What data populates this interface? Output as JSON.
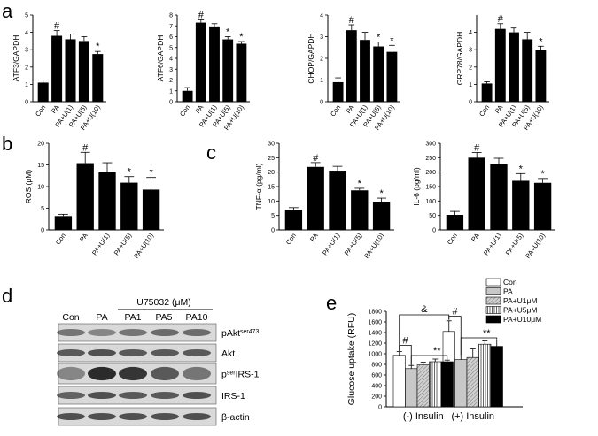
{
  "panel_labels": {
    "a": "a",
    "b": "b",
    "c": "c",
    "d": "d",
    "e": "e"
  },
  "chart_data": [
    {
      "id": "atf3",
      "type": "bar",
      "ylabel": "ATF3/GAPDH",
      "categories": [
        "Con",
        "PA",
        "PA+U(1)",
        "PA+U(5)",
        "PA+U(10)"
      ],
      "values": [
        1.1,
        3.8,
        3.6,
        3.5,
        2.75
      ],
      "errors": [
        0.15,
        0.3,
        0.3,
        0.25,
        0.15
      ],
      "ylim": [
        0,
        5
      ],
      "yticks": [
        0,
        1,
        2,
        3,
        4,
        5
      ],
      "significance": [
        "",
        "#",
        "",
        "",
        "*"
      ]
    },
    {
      "id": "atf6",
      "type": "bar",
      "ylabel": "ATF6/GAPDH",
      "categories": [
        "Con",
        "PA",
        "PA+U(1)",
        "PA+U(5)",
        "PA+U(10)"
      ],
      "values": [
        1.0,
        7.3,
        6.95,
        5.75,
        5.35
      ],
      "errors": [
        0.3,
        0.25,
        0.25,
        0.25,
        0.2
      ],
      "ylim": [
        0,
        8
      ],
      "yticks": [
        0,
        1,
        2,
        3,
        4,
        5,
        6,
        7,
        8
      ],
      "significance": [
        "",
        "#",
        "",
        "*",
        "*"
      ]
    },
    {
      "id": "chop",
      "type": "bar",
      "ylabel": "CHOP/GAPDH",
      "categories": [
        "Con",
        "PA",
        "PA+U(1)",
        "PA+U(5)",
        "PA+U(10)"
      ],
      "values": [
        0.9,
        3.3,
        2.85,
        2.55,
        2.3
      ],
      "errors": [
        0.2,
        0.25,
        0.35,
        0.2,
        0.3
      ],
      "ylim": [
        0,
        4
      ],
      "yticks": [
        0,
        1,
        2,
        3,
        4
      ],
      "significance": [
        "",
        "#",
        "",
        "*",
        "*"
      ]
    },
    {
      "id": "grp78",
      "type": "bar",
      "ylabel": "GRP78/GAPDH",
      "categories": [
        "Con",
        "PA",
        "PA+U(1)",
        "PA+U(5)",
        "PA+U(10)"
      ],
      "values": [
        1.05,
        4.2,
        4.0,
        3.6,
        3.0
      ],
      "errors": [
        0.1,
        0.3,
        0.25,
        0.4,
        0.2
      ],
      "ylim": [
        0,
        5
      ],
      "yticks": [
        0,
        1,
        2,
        3,
        4
      ],
      "significance": [
        "",
        "#",
        "",
        "",
        "*"
      ]
    },
    {
      "id": "ros",
      "type": "bar",
      "ylabel": "ROS (μM)",
      "categories": [
        "Con",
        "PA",
        "PA+U(1)",
        "PA+U(5)",
        "PA+U(10)"
      ],
      "values": [
        3.2,
        15.4,
        13.3,
        10.9,
        9.3
      ],
      "errors": [
        0.4,
        2.5,
        2.2,
        1.4,
        2.8
      ],
      "ylim": [
        0,
        20
      ],
      "yticks": [
        0,
        5,
        10,
        15,
        20
      ],
      "significance": [
        "",
        "#",
        "",
        "*",
        "*"
      ]
    },
    {
      "id": "tnfa",
      "type": "bar",
      "ylabel": "TNF-α (pg/ml)",
      "categories": [
        "Con",
        "PA",
        "PA+U(1)",
        "PA+U(5)",
        "PA+U(10)"
      ],
      "values": [
        7.0,
        21.8,
        20.5,
        13.7,
        9.8
      ],
      "errors": [
        0.7,
        1.5,
        1.5,
        0.7,
        1.2
      ],
      "ylim": [
        0,
        30
      ],
      "yticks": [
        0,
        5,
        10,
        15,
        20,
        25,
        30
      ],
      "significance": [
        "",
        "#",
        "",
        "*",
        "*"
      ]
    },
    {
      "id": "il6",
      "type": "bar",
      "ylabel": "IL-6 (pg/ml)",
      "categories": [
        "Con",
        "PA",
        "PA+U(1)",
        "PA+U(5)",
        "PA+U(10)"
      ],
      "values": [
        52,
        250,
        228,
        170,
        163
      ],
      "errors": [
        12,
        18,
        20,
        25,
        15
      ],
      "ylim": [
        0,
        300
      ],
      "yticks": [
        0,
        50,
        100,
        150,
        200,
        250,
        300
      ],
      "significance": [
        "",
        "#",
        "",
        "*",
        "*"
      ]
    },
    {
      "id": "glucose",
      "type": "bar",
      "ylabel": "Glucose uptake (RFU)",
      "groups": [
        "(-)  Insulin",
        "(+) Insulin"
      ],
      "ylim": [
        0,
        1800
      ],
      "yticks": [
        0,
        200,
        400,
        600,
        800,
        1000,
        1200,
        1400,
        1600,
        1800
      ],
      "series": [
        {
          "name": "Con",
          "values": [
            970,
            1420
          ],
          "errors": [
            70,
            200
          ],
          "color": "#ffffff",
          "pattern": "none"
        },
        {
          "name": "PA",
          "values": [
            720,
            890
          ],
          "errors": [
            60,
            70
          ],
          "color": "#c8c8c8",
          "pattern": "none"
        },
        {
          "name": "PA+U1μM",
          "values": [
            790,
            930
          ],
          "errors": [
            50,
            160
          ],
          "color": "#c8c8c8",
          "pattern": "diag"
        },
        {
          "name": "PA+U5μM",
          "values": [
            850,
            1180
          ],
          "errors": [
            50,
            60
          ],
          "color": "#ffffff",
          "pattern": "vert"
        },
        {
          "name": "PA+U10μM",
          "values": [
            850,
            1140
          ],
          "errors": [
            30,
            120
          ],
          "color": "#000000",
          "pattern": "none"
        }
      ],
      "annotations": [
        "&",
        "#",
        "**",
        "#",
        "**"
      ],
      "legend": "top-right"
    }
  ],
  "blot": {
    "header_label": "U75032 (μM)",
    "lanes": [
      "Con",
      "PA",
      "PA1",
      "PA5",
      "PA10"
    ],
    "rows": [
      {
        "label_main": "pAkt",
        "label_sup": "ser473"
      },
      {
        "label_main": "Akt",
        "label_sup": ""
      },
      {
        "label_pre": "p",
        "label_sup": "ser",
        "label_main": "IRS-1"
      },
      {
        "label_main": "IRS-1",
        "label_sup": ""
      },
      {
        "label_main": "β-actin",
        "label_sup": ""
      }
    ]
  }
}
